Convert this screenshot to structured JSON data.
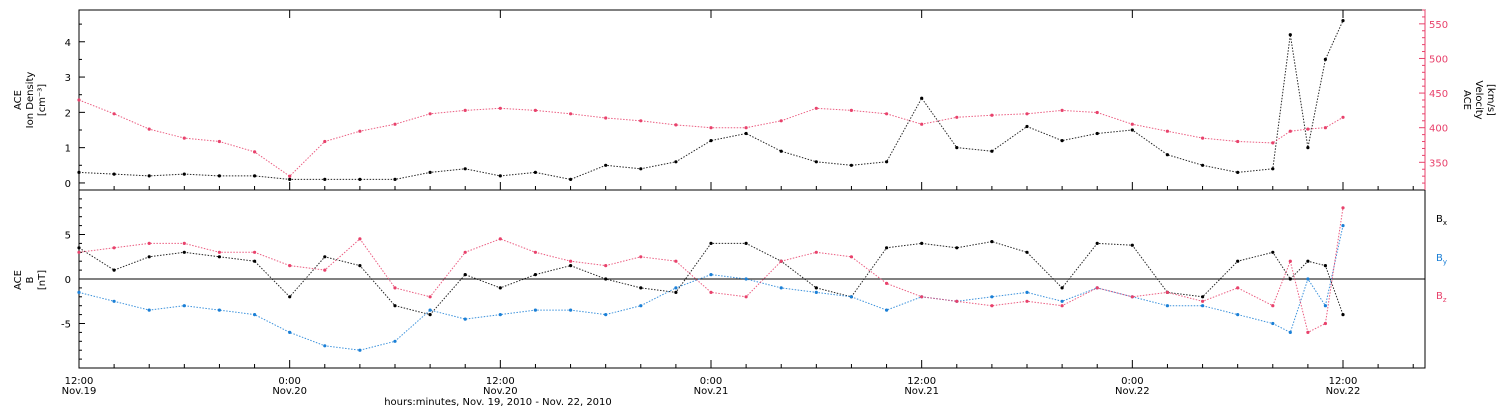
{
  "colors": {
    "axis": "#000000",
    "density": "#000000",
    "velocity": "#e8416b",
    "bx": "#000000",
    "by": "#1a7fd6",
    "bz": "#e8416b"
  },
  "chart_data": [
    {
      "type": "scatter",
      "panel": "top",
      "ylabel_lines": [
        "ACE",
        "Ion Density"
      ],
      "yunit": "[cm⁻³]",
      "y2label_lines": [
        "ACE",
        "Velocity"
      ],
      "y2unit": "[km/s]",
      "ylim": [
        -0.2,
        4.9
      ],
      "yticks": [
        0,
        1,
        2,
        3,
        4
      ],
      "y2lim": [
        310,
        570
      ],
      "y2ticks": [
        350,
        400,
        450,
        500,
        550
      ],
      "x_hours_from_nov19_1200": [
        0,
        72
      ],
      "series": [
        {
          "key": "density",
          "points": [
            [
              0,
              0.3
            ],
            [
              2,
              0.25
            ],
            [
              4,
              0.2
            ],
            [
              6,
              0.25
            ],
            [
              8,
              0.2
            ],
            [
              10,
              0.2
            ],
            [
              12,
              0.1
            ],
            [
              14,
              0.1
            ],
            [
              16,
              0.1
            ],
            [
              18,
              0.1
            ],
            [
              20,
              0.3
            ],
            [
              22,
              0.4
            ],
            [
              24,
              0.2
            ],
            [
              26,
              0.3
            ],
            [
              28,
              0.1
            ],
            [
              30,
              0.5
            ],
            [
              32,
              0.4
            ],
            [
              34,
              0.6
            ],
            [
              36,
              1.2
            ],
            [
              38,
              1.4
            ],
            [
              40,
              0.9
            ],
            [
              42,
              0.6
            ],
            [
              44,
              0.5
            ],
            [
              46,
              0.6
            ],
            [
              48,
              2.4
            ],
            [
              50,
              1.0
            ],
            [
              52,
              0.9
            ],
            [
              54,
              1.6
            ],
            [
              56,
              1.2
            ],
            [
              58,
              1.4
            ],
            [
              60,
              1.5
            ],
            [
              62,
              0.8
            ],
            [
              64,
              0.5
            ],
            [
              66,
              0.3
            ],
            [
              68,
              0.4
            ],
            [
              69,
              4.2
            ],
            [
              70,
              1.0
            ],
            [
              71,
              3.5
            ],
            [
              72,
              4.6
            ]
          ]
        },
        {
          "key": "velocity",
          "points": [
            [
              0,
              440
            ],
            [
              2,
              420
            ],
            [
              4,
              398
            ],
            [
              6,
              385
            ],
            [
              8,
              380
            ],
            [
              10,
              365
            ],
            [
              12,
              330
            ],
            [
              14,
              380
            ],
            [
              16,
              395
            ],
            [
              18,
              405
            ],
            [
              20,
              420
            ],
            [
              22,
              425
            ],
            [
              24,
              428
            ],
            [
              26,
              425
            ],
            [
              28,
              420
            ],
            [
              30,
              414
            ],
            [
              32,
              410
            ],
            [
              34,
              404
            ],
            [
              36,
              400
            ],
            [
              38,
              400
            ],
            [
              40,
              410
            ],
            [
              42,
              428
            ],
            [
              44,
              425
            ],
            [
              46,
              420
            ],
            [
              48,
              405
            ],
            [
              50,
              415
            ],
            [
              52,
              418
            ],
            [
              54,
              420
            ],
            [
              56,
              425
            ],
            [
              58,
              422
            ],
            [
              60,
              405
            ],
            [
              62,
              395
            ],
            [
              64,
              385
            ],
            [
              66,
              380
            ],
            [
              68,
              378
            ],
            [
              69,
              395
            ],
            [
              70,
              398
            ],
            [
              71,
              400
            ],
            [
              72,
              415
            ]
          ]
        }
      ]
    },
    {
      "type": "scatter",
      "panel": "bottom",
      "ylabel_lines": [
        "ACE",
        "B"
      ],
      "yunit": "[nT]",
      "ylim": [
        -10,
        10
      ],
      "yticks": [
        -5,
        0,
        5
      ],
      "x_hours_from_nov19_1200": [
        0,
        72
      ],
      "series": [
        {
          "key": "bx",
          "name": "B",
          "sub": "x",
          "points": [
            [
              0,
              3.5
            ],
            [
              2,
              1
            ],
            [
              4,
              2.5
            ],
            [
              6,
              3
            ],
            [
              8,
              2.5
            ],
            [
              10,
              2
            ],
            [
              12,
              -2
            ],
            [
              14,
              2.5
            ],
            [
              16,
              1.5
            ],
            [
              18,
              -3
            ],
            [
              20,
              -4
            ],
            [
              22,
              0.5
            ],
            [
              24,
              -1
            ],
            [
              26,
              0.5
            ],
            [
              28,
              1.5
            ],
            [
              30,
              0
            ],
            [
              32,
              -1
            ],
            [
              34,
              -1.5
            ],
            [
              36,
              4
            ],
            [
              38,
              4
            ],
            [
              40,
              2
            ],
            [
              42,
              -1
            ],
            [
              44,
              -2
            ],
            [
              46,
              3.5
            ],
            [
              48,
              4
            ],
            [
              50,
              3.5
            ],
            [
              52,
              4.2
            ],
            [
              54,
              3
            ],
            [
              56,
              -1
            ],
            [
              58,
              4
            ],
            [
              60,
              3.8
            ],
            [
              62,
              -1.5
            ],
            [
              64,
              -2
            ],
            [
              66,
              2
            ],
            [
              68,
              3
            ],
            [
              69,
              0
            ],
            [
              70,
              2
            ],
            [
              71,
              1.5
            ],
            [
              72,
              -4
            ]
          ]
        },
        {
          "key": "by",
          "name": "B",
          "sub": "y",
          "points": [
            [
              0,
              -1.5
            ],
            [
              2,
              -2.5
            ],
            [
              4,
              -3.5
            ],
            [
              6,
              -3
            ],
            [
              8,
              -3.5
            ],
            [
              10,
              -4
            ],
            [
              12,
              -6
            ],
            [
              14,
              -7.5
            ],
            [
              16,
              -8
            ],
            [
              18,
              -7
            ],
            [
              20,
              -3.5
            ],
            [
              22,
              -4.5
            ],
            [
              24,
              -4
            ],
            [
              26,
              -3.5
            ],
            [
              28,
              -3.5
            ],
            [
              30,
              -4
            ],
            [
              32,
              -3
            ],
            [
              34,
              -1
            ],
            [
              36,
              0.5
            ],
            [
              38,
              0
            ],
            [
              40,
              -1
            ],
            [
              42,
              -1.5
            ],
            [
              44,
              -2
            ],
            [
              46,
              -3.5
            ],
            [
              48,
              -2
            ],
            [
              50,
              -2.5
            ],
            [
              52,
              -2
            ],
            [
              54,
              -1.5
            ],
            [
              56,
              -2.5
            ],
            [
              58,
              -1
            ],
            [
              60,
              -2
            ],
            [
              62,
              -3
            ],
            [
              64,
              -3
            ],
            [
              66,
              -4
            ],
            [
              68,
              -5
            ],
            [
              69,
              -6
            ],
            [
              70,
              0
            ],
            [
              71,
              -3
            ],
            [
              72,
              6
            ]
          ]
        },
        {
          "key": "bz",
          "name": "B",
          "sub": "z",
          "points": [
            [
              0,
              3
            ],
            [
              2,
              3.5
            ],
            [
              4,
              4
            ],
            [
              6,
              4
            ],
            [
              8,
              3
            ],
            [
              10,
              3
            ],
            [
              12,
              1.5
            ],
            [
              14,
              1
            ],
            [
              16,
              4.5
            ],
            [
              18,
              -1
            ],
            [
              20,
              -2
            ],
            [
              22,
              3
            ],
            [
              24,
              4.5
            ],
            [
              26,
              3
            ],
            [
              28,
              2
            ],
            [
              30,
              1.5
            ],
            [
              32,
              2.5
            ],
            [
              34,
              2
            ],
            [
              36,
              -1.5
            ],
            [
              38,
              -2
            ],
            [
              40,
              2
            ],
            [
              42,
              3
            ],
            [
              44,
              2.5
            ],
            [
              46,
              -0.5
            ],
            [
              48,
              -2
            ],
            [
              50,
              -2.5
            ],
            [
              52,
              -3
            ],
            [
              54,
              -2.5
            ],
            [
              56,
              -3
            ],
            [
              58,
              -1
            ],
            [
              60,
              -2
            ],
            [
              62,
              -1.5
            ],
            [
              64,
              -2.5
            ],
            [
              66,
              -1
            ],
            [
              68,
              -3
            ],
            [
              69,
              2
            ],
            [
              70,
              -6
            ],
            [
              71,
              -5
            ],
            [
              72,
              8
            ]
          ]
        }
      ]
    }
  ],
  "x_axis": {
    "major_ticks": [
      {
        "hours": 0,
        "time": "12:00",
        "date": "Nov.19"
      },
      {
        "hours": 12,
        "time": "0:00",
        "date": "Nov.20"
      },
      {
        "hours": 24,
        "time": "12:00",
        "date": "Nov.20"
      },
      {
        "hours": 36,
        "time": "0:00",
        "date": "Nov.21"
      },
      {
        "hours": 48,
        "time": "12:00",
        "date": "Nov.21"
      },
      {
        "hours": 60,
        "time": "0:00",
        "date": "Nov.22"
      },
      {
        "hours": 72,
        "time": "12:00",
        "date": "Nov.22"
      }
    ],
    "xlabel": "hours:minutes, Nov. 19, 2010 - Nov. 22, 2010"
  }
}
